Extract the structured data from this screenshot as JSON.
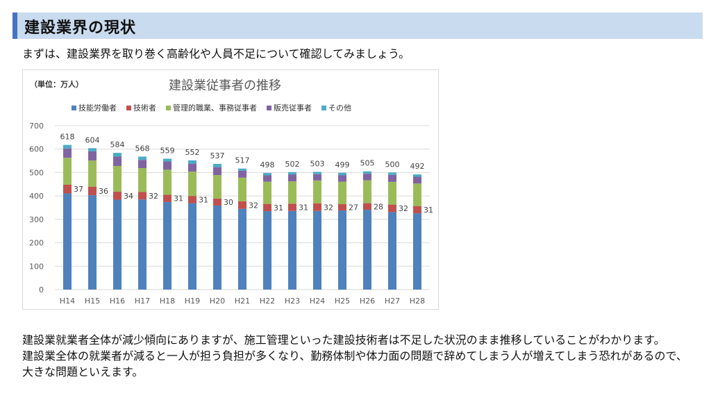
{
  "header": {
    "title": "建設業界の現状"
  },
  "intro": "まずは、建設業界を取り巻く高齢化や人員不足について確認してみましょう。",
  "chart_data": {
    "type": "bar",
    "stacked": true,
    "title": "建設業従事者の推移",
    "unit_label": "（単位：万人）",
    "categories": [
      "H14",
      "H15",
      "H16",
      "H17",
      "H18",
      "H19",
      "H20",
      "H21",
      "H22",
      "H23",
      "H24",
      "H25",
      "H26",
      "H27",
      "H28"
    ],
    "series": [
      {
        "name": "技能労働者",
        "color": "#4f81bd",
        "values": [
          411,
          403,
          384,
          385,
          374,
          369,
          359,
          345,
          335,
          336,
          336,
          338,
          341,
          331,
          326
        ]
      },
      {
        "name": "技術者",
        "color": "#c0504d",
        "values": [
          37,
          36,
          34,
          32,
          31,
          31,
          30,
          32,
          31,
          31,
          32,
          27,
          28,
          32,
          31
        ]
      },
      {
        "name": "管理的職業、事務従事者",
        "color": "#9bbb59",
        "values": [
          115,
          112,
          110,
          102,
          107,
          104,
          100,
          101,
          95,
          95,
          98,
          96,
          98,
          97,
          96
        ]
      },
      {
        "name": "販売従事者",
        "color": "#8064a2",
        "values": [
          40,
          40,
          40,
          35,
          35,
          34,
          34,
          30,
          27,
          30,
          27,
          28,
          28,
          30,
          29
        ]
      },
      {
        "name": "その他",
        "color": "#4bacc6",
        "values": [
          15,
          13,
          16,
          14,
          12,
          14,
          14,
          9,
          10,
          10,
          10,
          10,
          10,
          10,
          10
        ]
      }
    ],
    "totals": [
      618,
      604,
      584,
      568,
      559,
      552,
      537,
      517,
      498,
      502,
      503,
      499,
      505,
      500,
      492
    ],
    "technician_labels": [
      37,
      36,
      34,
      32,
      31,
      31,
      30,
      32,
      31,
      31,
      32,
      27,
      28,
      32,
      31
    ],
    "y_ticks": [
      0,
      100,
      200,
      300,
      400,
      500,
      600,
      700
    ],
    "ylim": [
      0,
      700
    ],
    "legend_position": "top",
    "grid": true
  },
  "body": {
    "paragraph1": "建設業就業者全体が減少傾向にありますが、施工管理といった建設技術者は不足した状況のまま推移していることがわかります。",
    "paragraph2": "建設業全体の就業者が減ると一人が担う負担が多くなり、勤務体制や体力面の問題で辞めてしまう人が増えてしまう恐れがあるので、大きな問題といえます。"
  }
}
